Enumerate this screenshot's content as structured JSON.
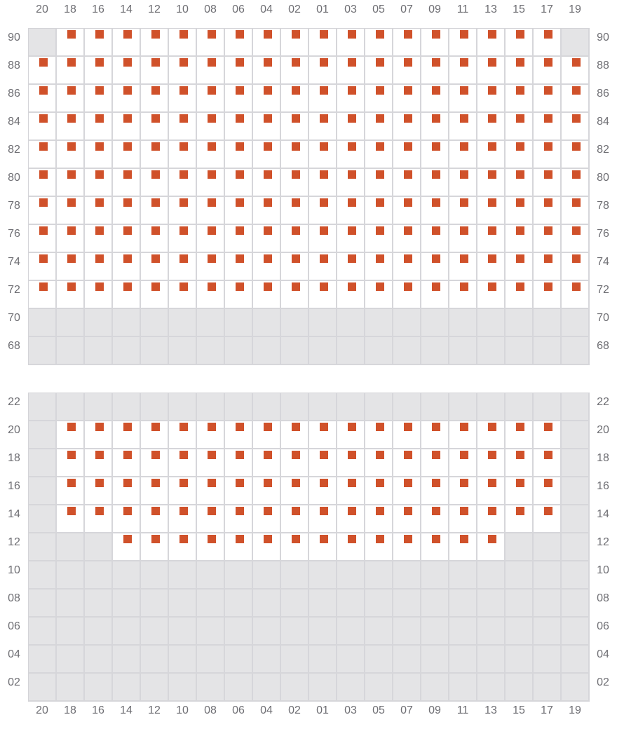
{
  "columns": [
    "20",
    "18",
    "16",
    "14",
    "12",
    "10",
    "08",
    "06",
    "04",
    "02",
    "01",
    "03",
    "05",
    "07",
    "09",
    "11",
    "13",
    "15",
    "17",
    "19"
  ],
  "legend_codes": {
    "x": "marked",
    "o": "open",
    "-": "unavailable"
  },
  "colors": {
    "marked": "#d0512a",
    "unavailable": "#e4e4e6",
    "open": "#ffffff",
    "border": "#d6d6da"
  },
  "sections": [
    {
      "rows": [
        {
          "label": "90",
          "cells": "-xxxxxxxxxxxxxxxxxx-"
        },
        {
          "label": "88",
          "cells": "xxxxxxxxxxxxxxxxxxxx"
        },
        {
          "label": "86",
          "cells": "xxxxxxxxxxxxxxxxxxxx"
        },
        {
          "label": "84",
          "cells": "xxxxxxxxxxxxxxxxxxxx"
        },
        {
          "label": "82",
          "cells": "xxxxxxxxxxxxxxxxxxxx"
        },
        {
          "label": "80",
          "cells": "xxxxxxxxxxxxxxxxxxxx"
        },
        {
          "label": "78",
          "cells": "xxxxxxxxxxxxxxxxxxxx"
        },
        {
          "label": "76",
          "cells": "xxxxxxxxxxxxxxxxxxxx"
        },
        {
          "label": "74",
          "cells": "xxxxxxxxxxxxxxxxxxxx"
        },
        {
          "label": "72",
          "cells": "xxxxxxxxxxxxxxxxxxxx"
        },
        {
          "label": "70",
          "cells": "--------------------"
        },
        {
          "label": "68",
          "cells": "--------------------"
        }
      ]
    },
    {
      "rows": [
        {
          "label": "22",
          "cells": "--------------------"
        },
        {
          "label": "20",
          "cells": "-xxxxxxxxxxxxxxxxxx-"
        },
        {
          "label": "18",
          "cells": "-xxxxxxxxxxxxxxxxxx-"
        },
        {
          "label": "16",
          "cells": "-xxxxxxxxxxxxxxxxxx-"
        },
        {
          "label": "14",
          "cells": "-xxxxxxxxxxxxxxxxxx-"
        },
        {
          "label": "12",
          "cells": "---xxxxxxxxxxxxxx---"
        },
        {
          "label": "10",
          "cells": "--------------------"
        },
        {
          "label": "08",
          "cells": "--------------------"
        },
        {
          "label": "06",
          "cells": "--------------------"
        },
        {
          "label": "04",
          "cells": "--------------------"
        },
        {
          "label": "02",
          "cells": "--------------------"
        }
      ]
    }
  ]
}
